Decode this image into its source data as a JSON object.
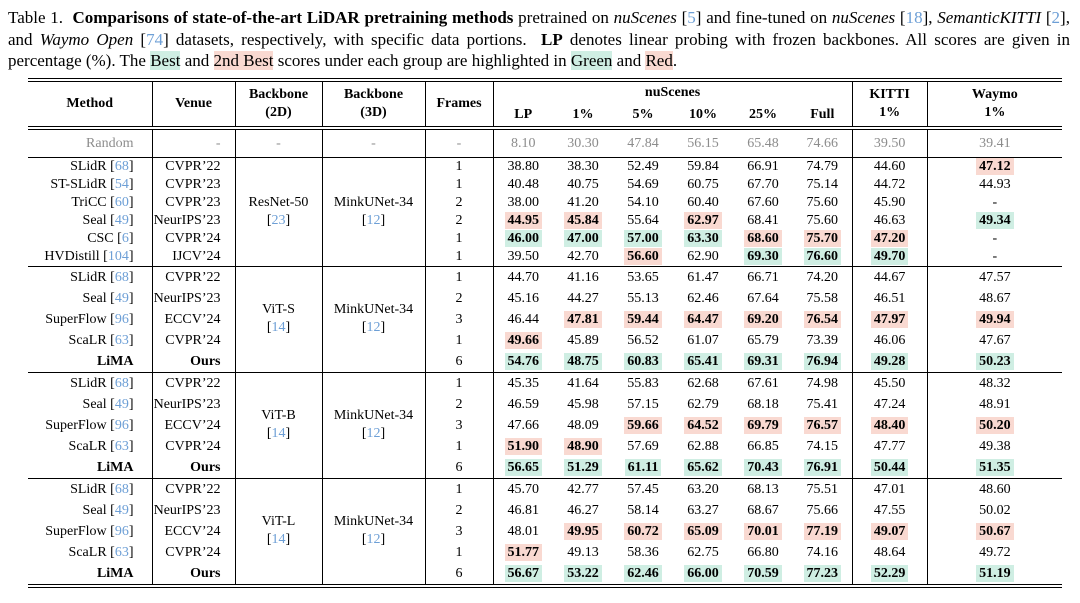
{
  "colors": {
    "best_bg": "#cfeee3",
    "second_bg": "#f9d9d1",
    "cite": "#6d9fd6",
    "muted_text": "#8c8c8c"
  },
  "caption": {
    "segments": [
      {
        "t": "Table 1.  ",
        "s": "plain"
      },
      {
        "t": "Comparisons of state-of-the-art LiDAR pretraining methods",
        "s": "b"
      },
      {
        "t": " pretrained on ",
        "s": "plain"
      },
      {
        "t": "nuScenes",
        "s": "i"
      },
      {
        "t": " [",
        "s": "plain"
      },
      {
        "t": "5",
        "s": "cite"
      },
      {
        "t": "] and fine-tuned on ",
        "s": "plain"
      },
      {
        "t": "nuScenes",
        "s": "i"
      },
      {
        "t": " [",
        "s": "plain"
      },
      {
        "t": "18",
        "s": "cite"
      },
      {
        "t": "], ",
        "s": "plain"
      },
      {
        "t": "SemanticKITTI",
        "s": "i"
      },
      {
        "t": " [",
        "s": "plain"
      },
      {
        "t": "2",
        "s": "cite"
      },
      {
        "t": "], and ",
        "s": "plain"
      },
      {
        "t": "Waymo Open",
        "s": "i"
      },
      {
        "t": " [",
        "s": "plain"
      },
      {
        "t": "74",
        "s": "cite"
      },
      {
        "t": "] datasets, respectively, with specific data portions.  ",
        "s": "plain"
      },
      {
        "t": "LP",
        "s": "b"
      },
      {
        "t": " denotes linear probing with frozen backbones. All scores are given in percentage (%). The ",
        "s": "plain"
      },
      {
        "t": "Best",
        "s": "hg"
      },
      {
        "t": " and ",
        "s": "plain"
      },
      {
        "t": "2nd Best",
        "s": "hr"
      },
      {
        "t": " scores under each group are highlighted in ",
        "s": "plain"
      },
      {
        "t": "Green",
        "s": "hg"
      },
      {
        "t": " and ",
        "s": "plain"
      },
      {
        "t": "Red",
        "s": "hr"
      },
      {
        "t": ".",
        "s": "plain"
      }
    ]
  },
  "table": {
    "header": {
      "method": "Method",
      "venue": "Venue",
      "backbone2d_l1": "Backbone",
      "backbone2d_l2": "(2D)",
      "backbone3d_l1": "Backbone",
      "backbone3d_l2": "(3D)",
      "frames": "Frames",
      "nuscenes": "nuScenes",
      "sub": {
        "lp": "LP",
        "p1": "1%",
        "p5": "5%",
        "p10": "10%",
        "p25": "25%",
        "full": "Full"
      },
      "kitti_l1": "KITTI",
      "kitti_l2": "1%",
      "waymo_l1": "Waymo",
      "waymo_l2": "1%"
    },
    "random_row": {
      "method": "Random",
      "venue": "-",
      "b2d": "-",
      "b3d": "-",
      "frames": "-",
      "values": [
        "8.10",
        "30.30",
        "47.84",
        "56.15",
        "65.48",
        "74.66",
        "39.50",
        "39.41"
      ]
    },
    "groups": [
      {
        "backbone2d": {
          "name": "ResNet-50",
          "ref": "23"
        },
        "backbone3d": {
          "name": "MinkUNet-34",
          "ref": "12"
        },
        "rows": [
          {
            "method": "SLidR",
            "ref": "68",
            "venue": "CVPR’22",
            "frames": "1",
            "cells": [
              {
                "v": "38.80"
              },
              {
                "v": "38.30"
              },
              {
                "v": "52.49"
              },
              {
                "v": "59.84"
              },
              {
                "v": "66.91"
              },
              {
                "v": "74.79"
              },
              {
                "v": "44.60"
              },
              {
                "v": "47.12",
                "h": "r"
              }
            ]
          },
          {
            "method": "ST-SLidR",
            "ref": "54",
            "venue": "CVPR’23",
            "frames": "1",
            "cells": [
              {
                "v": "40.48"
              },
              {
                "v": "40.75"
              },
              {
                "v": "54.69"
              },
              {
                "v": "60.75"
              },
              {
                "v": "67.70"
              },
              {
                "v": "75.14"
              },
              {
                "v": "44.72"
              },
              {
                "v": "44.93"
              }
            ]
          },
          {
            "method": "TriCC",
            "ref": "60",
            "venue": "CVPR’23",
            "frames": "2",
            "cells": [
              {
                "v": "38.00"
              },
              {
                "v": "41.20"
              },
              {
                "v": "54.10"
              },
              {
                "v": "60.40"
              },
              {
                "v": "67.60"
              },
              {
                "v": "75.60"
              },
              {
                "v": "45.90"
              },
              {
                "v": "-"
              }
            ]
          },
          {
            "method": "Seal",
            "ref": "49",
            "venue": "NeurIPS’23",
            "frames": "2",
            "cells": [
              {
                "v": "44.95",
                "h": "r"
              },
              {
                "v": "45.84",
                "h": "r"
              },
              {
                "v": "55.64"
              },
              {
                "v": "62.97",
                "h": "r"
              },
              {
                "v": "68.41"
              },
              {
                "v": "75.60"
              },
              {
                "v": "46.63"
              },
              {
                "v": "49.34",
                "h": "g"
              }
            ]
          },
          {
            "method": "CSC",
            "ref": "6",
            "venue": "CVPR’24",
            "frames": "1",
            "cells": [
              {
                "v": "46.00",
                "h": "g"
              },
              {
                "v": "47.00",
                "h": "g"
              },
              {
                "v": "57.00",
                "h": "g"
              },
              {
                "v": "63.30",
                "h": "g"
              },
              {
                "v": "68.60",
                "h": "r"
              },
              {
                "v": "75.70",
                "h": "r"
              },
              {
                "v": "47.20",
                "h": "r"
              },
              {
                "v": "-"
              }
            ]
          },
          {
            "method": "HVDistill",
            "ref": "104",
            "venue": "IJCV’24",
            "frames": "1",
            "cells": [
              {
                "v": "39.50"
              },
              {
                "v": "42.70"
              },
              {
                "v": "56.60",
                "h": "r"
              },
              {
                "v": "62.90"
              },
              {
                "v": "69.30",
                "h": "g"
              },
              {
                "v": "76.60",
                "h": "g"
              },
              {
                "v": "49.70",
                "h": "g"
              },
              {
                "v": "-"
              }
            ]
          }
        ]
      },
      {
        "backbone2d": {
          "name": "ViT-S",
          "ref": "14"
        },
        "backbone3d": {
          "name": "MinkUNet-34",
          "ref": "12"
        },
        "rows": [
          {
            "method": "SLidR",
            "ref": "68",
            "venue": "CVPR’22",
            "frames": "1",
            "cells": [
              {
                "v": "44.70"
              },
              {
                "v": "41.16"
              },
              {
                "v": "53.65"
              },
              {
                "v": "61.47"
              },
              {
                "v": "66.71"
              },
              {
                "v": "74.20"
              },
              {
                "v": "44.67"
              },
              {
                "v": "47.57"
              }
            ]
          },
          {
            "method": "Seal",
            "ref": "49",
            "venue": "NeurIPS’23",
            "frames": "2",
            "cells": [
              {
                "v": "45.16"
              },
              {
                "v": "44.27"
              },
              {
                "v": "55.13"
              },
              {
                "v": "62.46"
              },
              {
                "v": "67.64"
              },
              {
                "v": "75.58"
              },
              {
                "v": "46.51"
              },
              {
                "v": "48.67"
              }
            ]
          },
          {
            "method": "SuperFlow",
            "ref": "96",
            "venue": "ECCV’24",
            "frames": "3",
            "cells": [
              {
                "v": "46.44"
              },
              {
                "v": "47.81",
                "h": "r"
              },
              {
                "v": "59.44",
                "h": "r"
              },
              {
                "v": "64.47",
                "h": "r"
              },
              {
                "v": "69.20",
                "h": "r"
              },
              {
                "v": "76.54",
                "h": "r"
              },
              {
                "v": "47.97",
                "h": "r"
              },
              {
                "v": "49.94",
                "h": "r"
              }
            ]
          },
          {
            "method": "ScaLR",
            "ref": "63",
            "venue": "CVPR’24",
            "frames": "1",
            "cells": [
              {
                "v": "49.66",
                "h": "r"
              },
              {
                "v": "45.89"
              },
              {
                "v": "56.52"
              },
              {
                "v": "61.07"
              },
              {
                "v": "65.79"
              },
              {
                "v": "73.39"
              },
              {
                "v": "46.06"
              },
              {
                "v": "47.67"
              }
            ]
          },
          {
            "method": "LiMA",
            "venue": "Ours",
            "bold": true,
            "frames": "6",
            "cells": [
              {
                "v": "54.76",
                "h": "g"
              },
              {
                "v": "48.75",
                "h": "g"
              },
              {
                "v": "60.83",
                "h": "g"
              },
              {
                "v": "65.41",
                "h": "g"
              },
              {
                "v": "69.31",
                "h": "g"
              },
              {
                "v": "76.94",
                "h": "g"
              },
              {
                "v": "49.28",
                "h": "g"
              },
              {
                "v": "50.23",
                "h": "g"
              }
            ]
          }
        ]
      },
      {
        "backbone2d": {
          "name": "ViT-B",
          "ref": "14"
        },
        "backbone3d": {
          "name": "MinkUNet-34",
          "ref": "12"
        },
        "rows": [
          {
            "method": "SLidR",
            "ref": "68",
            "venue": "CVPR’22",
            "frames": "1",
            "cells": [
              {
                "v": "45.35"
              },
              {
                "v": "41.64"
              },
              {
                "v": "55.83"
              },
              {
                "v": "62.68"
              },
              {
                "v": "67.61"
              },
              {
                "v": "74.98"
              },
              {
                "v": "45.50"
              },
              {
                "v": "48.32"
              }
            ]
          },
          {
            "method": "Seal",
            "ref": "49",
            "venue": "NeurIPS’23",
            "frames": "2",
            "cells": [
              {
                "v": "46.59"
              },
              {
                "v": "45.98"
              },
              {
                "v": "57.15"
              },
              {
                "v": "62.79"
              },
              {
                "v": "68.18"
              },
              {
                "v": "75.41"
              },
              {
                "v": "47.24"
              },
              {
                "v": "48.91"
              }
            ]
          },
          {
            "method": "SuperFlow",
            "ref": "96",
            "venue": "ECCV’24",
            "frames": "3",
            "cells": [
              {
                "v": "47.66"
              },
              {
                "v": "48.09"
              },
              {
                "v": "59.66",
                "h": "r"
              },
              {
                "v": "64.52",
                "h": "r"
              },
              {
                "v": "69.79",
                "h": "r"
              },
              {
                "v": "76.57",
                "h": "r"
              },
              {
                "v": "48.40",
                "h": "r"
              },
              {
                "v": "50.20",
                "h": "r"
              }
            ]
          },
          {
            "method": "ScaLR",
            "ref": "63",
            "venue": "CVPR’24",
            "frames": "1",
            "cells": [
              {
                "v": "51.90",
                "h": "r"
              },
              {
                "v": "48.90",
                "h": "r"
              },
              {
                "v": "57.69"
              },
              {
                "v": "62.88"
              },
              {
                "v": "66.85"
              },
              {
                "v": "74.15"
              },
              {
                "v": "47.77"
              },
              {
                "v": "49.38"
              }
            ]
          },
          {
            "method": "LiMA",
            "venue": "Ours",
            "bold": true,
            "frames": "6",
            "cells": [
              {
                "v": "56.65",
                "h": "g"
              },
              {
                "v": "51.29",
                "h": "g"
              },
              {
                "v": "61.11",
                "h": "g"
              },
              {
                "v": "65.62",
                "h": "g"
              },
              {
                "v": "70.43",
                "h": "g"
              },
              {
                "v": "76.91",
                "h": "g"
              },
              {
                "v": "50.44",
                "h": "g"
              },
              {
                "v": "51.35",
                "h": "g"
              }
            ]
          }
        ]
      },
      {
        "backbone2d": {
          "name": "ViT-L",
          "ref": "14"
        },
        "backbone3d": {
          "name": "MinkUNet-34",
          "ref": "12"
        },
        "rows": [
          {
            "method": "SLidR",
            "ref": "68",
            "venue": "CVPR’22",
            "frames": "1",
            "cells": [
              {
                "v": "45.70"
              },
              {
                "v": "42.77"
              },
              {
                "v": "57.45"
              },
              {
                "v": "63.20"
              },
              {
                "v": "68.13"
              },
              {
                "v": "75.51"
              },
              {
                "v": "47.01"
              },
              {
                "v": "48.60"
              }
            ]
          },
          {
            "method": "Seal",
            "ref": "49",
            "venue": "NeurIPS’23",
            "frames": "2",
            "cells": [
              {
                "v": "46.81"
              },
              {
                "v": "46.27"
              },
              {
                "v": "58.14"
              },
              {
                "v": "63.27"
              },
              {
                "v": "68.67"
              },
              {
                "v": "75.66"
              },
              {
                "v": "47.55"
              },
              {
                "v": "50.02"
              }
            ]
          },
          {
            "method": "SuperFlow",
            "ref": "96",
            "venue": "ECCV’24",
            "frames": "3",
            "cells": [
              {
                "v": "48.01"
              },
              {
                "v": "49.95",
                "h": "r"
              },
              {
                "v": "60.72",
                "h": "r"
              },
              {
                "v": "65.09",
                "h": "r"
              },
              {
                "v": "70.01",
                "h": "r"
              },
              {
                "v": "77.19",
                "h": "r"
              },
              {
                "v": "49.07",
                "h": "r"
              },
              {
                "v": "50.67",
                "h": "r"
              }
            ]
          },
          {
            "method": "ScaLR",
            "ref": "63",
            "venue": "CVPR’24",
            "frames": "1",
            "cells": [
              {
                "v": "51.77",
                "h": "r"
              },
              {
                "v": "49.13"
              },
              {
                "v": "58.36"
              },
              {
                "v": "62.75"
              },
              {
                "v": "66.80"
              },
              {
                "v": "74.16"
              },
              {
                "v": "48.64"
              },
              {
                "v": "49.72"
              }
            ]
          },
          {
            "method": "LiMA",
            "venue": "Ours",
            "bold": true,
            "frames": "6",
            "cells": [
              {
                "v": "56.67",
                "h": "g"
              },
              {
                "v": "53.22",
                "h": "g"
              },
              {
                "v": "62.46",
                "h": "g"
              },
              {
                "v": "66.00",
                "h": "g"
              },
              {
                "v": "70.59",
                "h": "g"
              },
              {
                "v": "77.23",
                "h": "g"
              },
              {
                "v": "52.29",
                "h": "g"
              },
              {
                "v": "51.19",
                "h": "g"
              }
            ]
          }
        ]
      }
    ]
  }
}
